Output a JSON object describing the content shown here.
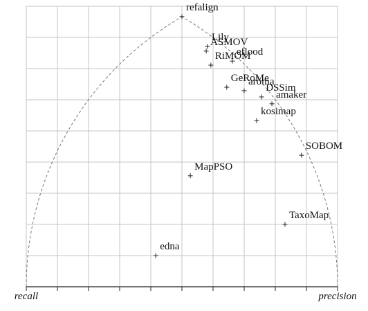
{
  "chart_data": {
    "type": "scatter",
    "xlabel": "recall",
    "x2label": "precision",
    "point_labels": [
      "refalign",
      "Lily",
      "ASMOV",
      "eflood",
      "RiMOM",
      "GeRoMe",
      "aroma",
      "DSSim",
      "amaker",
      "kosimap",
      "SOBOM",
      "MapPSO",
      "TaxoMap",
      "edna"
    ],
    "x": [
      0.5,
      0.582,
      0.578,
      0.662,
      0.593,
      0.644,
      0.7,
      0.756,
      0.789,
      0.74,
      0.884,
      0.527,
      0.831,
      0.416
    ],
    "values": [
      0.867,
      0.771,
      0.756,
      0.724,
      0.711,
      0.64,
      0.629,
      0.609,
      0.587,
      0.533,
      0.422,
      0.356,
      0.2,
      0.1
    ],
    "color": "#222222",
    "xlim": [
      0,
      1
    ],
    "ylim": [
      0,
      0.9
    ],
    "xticks": [
      0,
      0.1,
      0.2,
      0.3,
      0.4,
      0.5,
      0.6,
      0.7,
      0.8,
      0.9,
      1
    ],
    "yticks": [
      0,
      0.1,
      0.2,
      0.3,
      0.4,
      0.5,
      0.6,
      0.7,
      0.8,
      0.9
    ],
    "grid": true
  }
}
